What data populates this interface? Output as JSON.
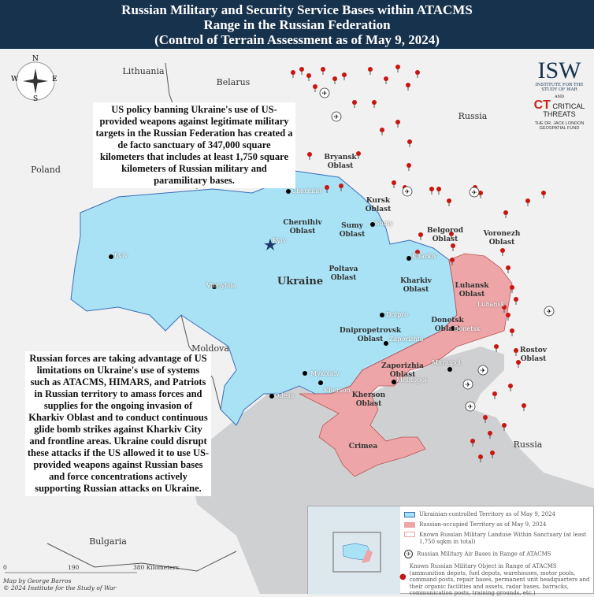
{
  "title": {
    "line1": "Russian Military and Security Service Bases within ATACMS",
    "line2": "Range in the Russian Federation",
    "line3": "(Control of Terrain Assessment as of May 9, 2024)"
  },
  "colors": {
    "ukraine": "#a9e2f5",
    "occupied": "#eda5a8",
    "sea": "#cfd0d2",
    "land": "#f1f1f1",
    "header": "#17324d",
    "pin": "#c8160f"
  },
  "compass": {
    "n": "N",
    "s": "S",
    "e": "E",
    "w": "W"
  },
  "countries": {
    "lithuania": "Lithuania",
    "belarus": "Belarus",
    "poland": "Poland",
    "russia_north": "Russia",
    "russia_south": "Russia",
    "ukraine": "Ukraine",
    "moldova": "Moldova",
    "bulgaria": "Bulgaria"
  },
  "oblasts": [
    "Bryansk\nOblast",
    "Kursk\nOblast",
    "Chernihiv\nOblast",
    "Sumy\nOblast",
    "Belgorod\nOblast",
    "Voronezh\nOblast",
    "Poltava\nOblast",
    "Kharkiv\nOblast",
    "Luhansk\nOblast",
    "Donetsk\nOblast",
    "Dnipropetrovsk\nOblast",
    "Zaporizhia\nOblast",
    "Kherson\nOblast",
    "Crimea",
    "Rostov\nOblast"
  ],
  "cities": [
    "Chernihiv",
    "Kyiv",
    "Sumy",
    "Kharkiv",
    "Lviv",
    "Vinnytsia",
    "Dnipro",
    "Zaporizhia",
    "Mykolaiv",
    "Kherson",
    "Odesa",
    "Melitopol",
    "Mariupol",
    "Donetsk",
    "Luhansk"
  ],
  "callout_top": "US policy banning Ukraine's use of US-provided weapons against legitimate military targets in the Russian Federation has created a de facto sanctuary of 347,000 square kilometers that includes at least 1,750 square kilometers of Russian military and paramilitary bases.",
  "callout_bottom": "Russian forces are taking advantage of US limitations on Ukraine's use of systems such as ATACMS, HIMARS, and Patriots in Russian territory to amass forces and supplies for the ongoing invasion of Kharkiv Oblast and to conduct continuous glide bomb strikes against Kharkiv City and frontline areas. Ukraine could disrupt these attacks if the US allowed it to use US-provided weapons against Russian bases and force concentrations actively supporting Russian attacks on Ukraine.",
  "logo": {
    "isw": "ISW",
    "isw_sub": "INSTITUTE FOR THE STUDY OF WAR",
    "and": "AND",
    "ct": "CRITICAL THREATS",
    "fund": "THE DR. JACK LONDON GEOSPATIAL FUND"
  },
  "legend": {
    "ukr": "Ukrainian-controlled Territory as of May 9, 2024",
    "rus": "Russian-occupied Territory as of May 9, 2024",
    "landuse": "Known Russian Military Landuse Within Sanctuary (at least 1,750 sqkm in total)",
    "air": "Russian Military Air Bases in Range of ATACMS",
    "object": "Known Russian Military Object in Range of ATACMS (ammunition depots, fuel depots, warehouses, motor pools, command posts, repair bases, permanent unit headquarters and their organic facilities and assets, radar bases, barracks, communication posts, training grounds, etc.)"
  },
  "scale": {
    "zero": "0",
    "mid": "190",
    "end": "380 Kilometers"
  },
  "credits": {
    "author": "Map by George Barros",
    "copyright": "© 2024 Institute for the Study of War"
  }
}
